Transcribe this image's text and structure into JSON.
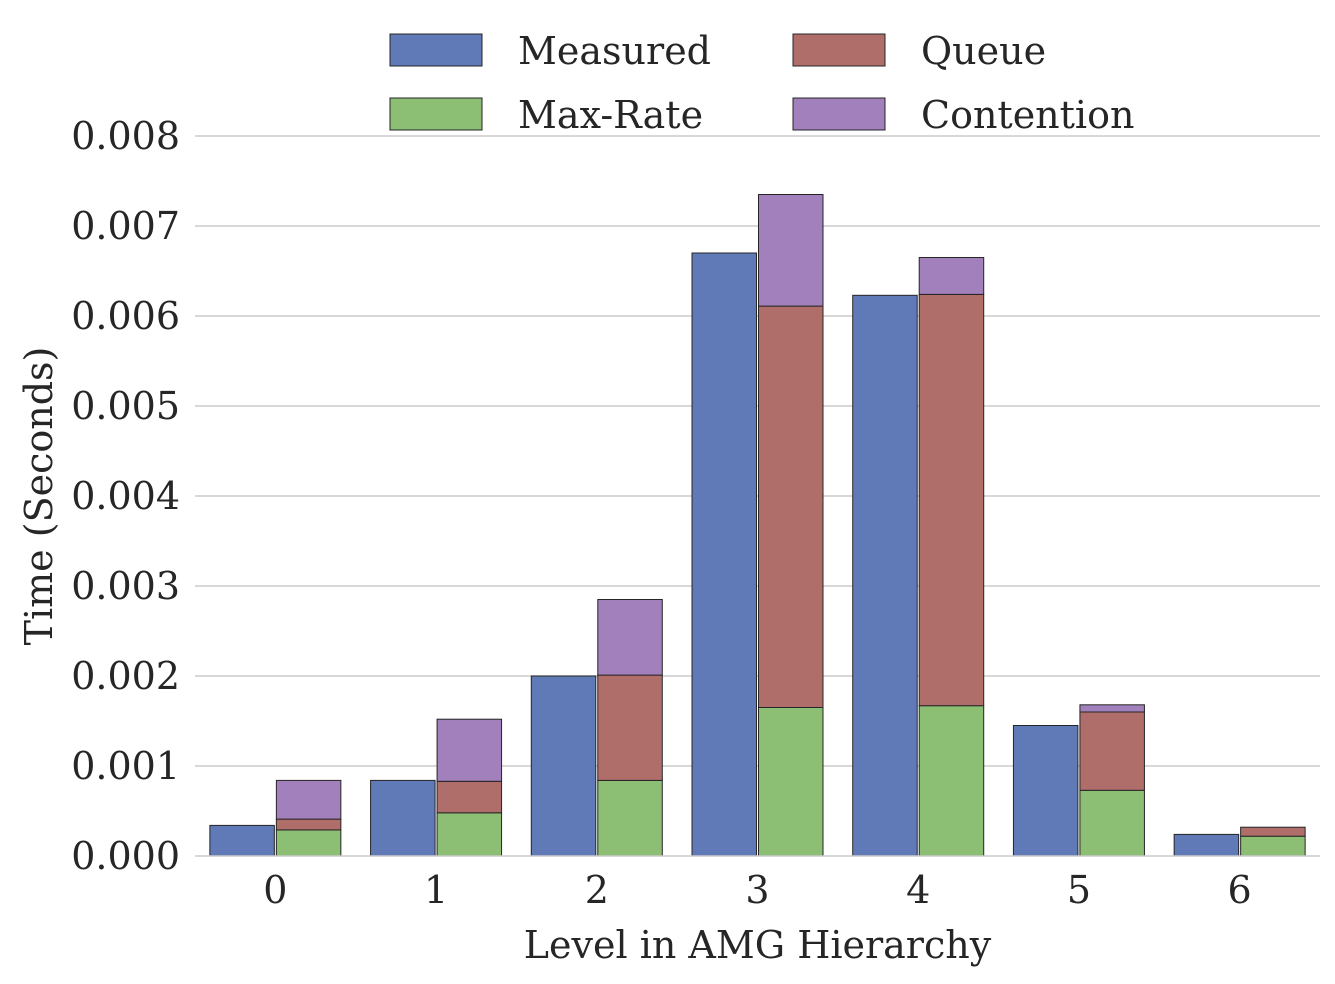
{
  "chart_data": {
    "type": "bar",
    "title": "",
    "xlabel": "Level in AMG Hierarchy",
    "ylabel": "Time (Seconds)",
    "ylim": [
      0,
      0.008
    ],
    "yticks": [
      "0.000",
      "0.001",
      "0.002",
      "0.003",
      "0.004",
      "0.005",
      "0.006",
      "0.007",
      "0.008"
    ],
    "ytick_values": [
      0,
      0.001,
      0.002,
      0.003,
      0.004,
      0.005,
      0.006,
      0.007,
      0.008
    ],
    "categories": [
      "0",
      "1",
      "2",
      "3",
      "4",
      "5",
      "6"
    ],
    "grid": true,
    "legend_position": "top-center",
    "series": [
      {
        "name": "Measured",
        "color": "#6079b7",
        "stack": "measured",
        "values": [
          0.00034,
          0.00084,
          0.002,
          0.0067,
          0.00623,
          0.00145,
          0.00024
        ]
      },
      {
        "name": "Max-Rate",
        "color": "#8cbf74",
        "stack": "model",
        "values": [
          0.00029,
          0.00048,
          0.00084,
          0.00165,
          0.00167,
          0.00073,
          0.00022
        ]
      },
      {
        "name": "Queue",
        "color": "#b06e6b",
        "stack": "model",
        "values": [
          0.00012,
          0.00035,
          0.00117,
          0.00446,
          0.00457,
          0.00087,
          0.0001
        ]
      },
      {
        "name": "Contention",
        "color": "#a180bb",
        "stack": "model",
        "values": [
          0.00043,
          0.00069,
          0.00084,
          0.00124,
          0.00041,
          8e-05,
          0
        ]
      }
    ],
    "legend": {
      "columns": [
        [
          "Measured",
          "Max-Rate"
        ],
        [
          "Queue",
          "Contention"
        ]
      ]
    }
  }
}
